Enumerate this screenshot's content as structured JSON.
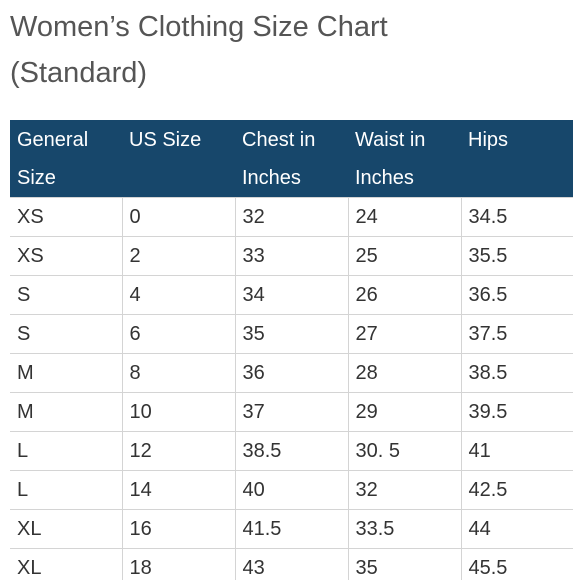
{
  "title": {
    "line1": "Women’s Clothing Size Chart",
    "line2": "(Standard)"
  },
  "table": {
    "headers": [
      [
        "General",
        "Size"
      ],
      [
        "US Size",
        ""
      ],
      [
        "Chest in",
        "Inches"
      ],
      [
        "Waist in",
        "Inches"
      ],
      [
        "Hips",
        ""
      ]
    ],
    "rows": [
      [
        "XS",
        "0",
        "32",
        "24",
        "34.5"
      ],
      [
        "XS",
        "2",
        "33",
        "25",
        "35.5"
      ],
      [
        "S",
        "4",
        "34",
        "26",
        "36.5"
      ],
      [
        "S",
        "6",
        "35",
        "27",
        "37.5"
      ],
      [
        "M",
        "8",
        "36",
        "28",
        "38.5"
      ],
      [
        "M",
        "10",
        "37",
        "29",
        "39.5"
      ],
      [
        "L",
        "12",
        "38.5",
        "30. 5",
        "41"
      ],
      [
        "L",
        "14",
        "40",
        "32",
        "42.5"
      ],
      [
        "XL",
        "16",
        "41.5",
        "33.5",
        "44"
      ],
      [
        "XL",
        "18",
        "43",
        "35",
        "45.5"
      ]
    ]
  },
  "colors": {
    "header_background": "#17476b",
    "header_text": "#ffffff",
    "title_text": "#555555",
    "cell_text": "#333333",
    "grid_line": "#d4d4d4"
  }
}
